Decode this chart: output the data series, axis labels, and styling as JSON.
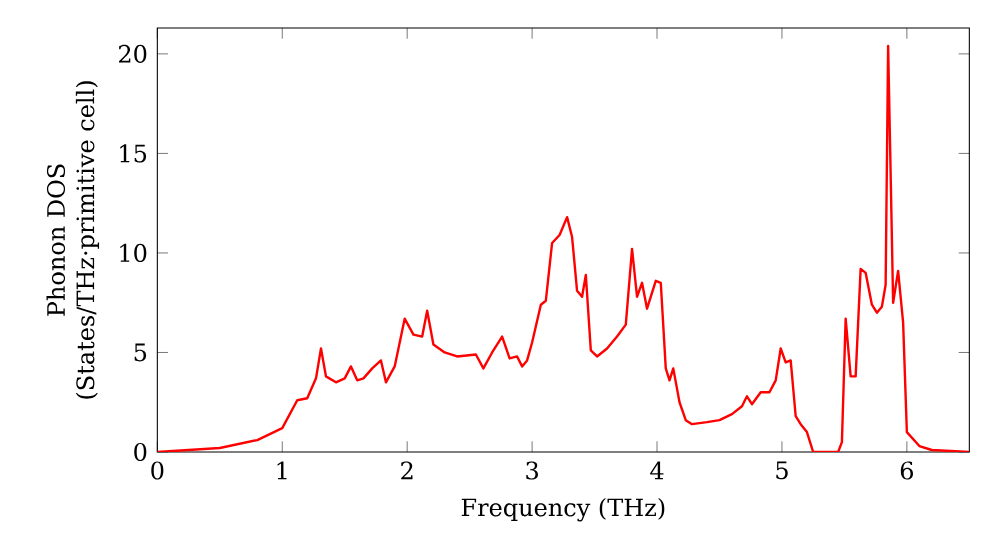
{
  "chart_data": {
    "type": "line",
    "xlabel": "Frequency (THz)",
    "ylabel": "Phonon DOS\n(States/THz·primitive cell)",
    "x": [
      0,
      0.5,
      0.8,
      1.0,
      1.12,
      1.2,
      1.27,
      1.31,
      1.35,
      1.43,
      1.5,
      1.55,
      1.6,
      1.65,
      1.72,
      1.79,
      1.83,
      1.9,
      1.98,
      2.05,
      2.12,
      2.16,
      2.21,
      2.3,
      2.4,
      2.55,
      2.61,
      2.68,
      2.76,
      2.82,
      2.88,
      2.92,
      2.96,
      3.0,
      3.07,
      3.11,
      3.16,
      3.22,
      3.28,
      3.32,
      3.36,
      3.4,
      3.43,
      3.47,
      3.52,
      3.6,
      3.68,
      3.75,
      3.8,
      3.84,
      3.88,
      3.92,
      3.99,
      4.03,
      4.07,
      4.1,
      4.13,
      4.18,
      4.23,
      4.28,
      4.4,
      4.5,
      4.6,
      4.68,
      4.72,
      4.76,
      4.83,
      4.9,
      4.95,
      4.99,
      5.03,
      5.07,
      5.11,
      5.15,
      5.2,
      5.25,
      5.45,
      5.48,
      5.51,
      5.55,
      5.59,
      5.63,
      5.67,
      5.72,
      5.76,
      5.8,
      5.83,
      5.85,
      5.87,
      5.89,
      5.93,
      5.97,
      6.0,
      6.1,
      6.2,
      6.5
    ],
    "series": [
      {
        "color": "#ff0000",
        "values": [
          0,
          0.2,
          0.6,
          1.2,
          2.6,
          2.7,
          3.7,
          5.2,
          3.8,
          3.5,
          3.7,
          4.3,
          3.6,
          3.7,
          4.2,
          4.6,
          3.5,
          4.3,
          6.7,
          5.9,
          5.8,
          7.1,
          5.4,
          5.0,
          4.8,
          4.9,
          4.2,
          5.0,
          5.8,
          4.7,
          4.8,
          4.3,
          4.6,
          5.5,
          7.4,
          7.6,
          10.5,
          10.9,
          11.8,
          10.8,
          8.1,
          7.8,
          8.9,
          5.1,
          4.8,
          5.2,
          5.8,
          6.4,
          10.2,
          7.8,
          8.5,
          7.2,
          8.6,
          8.5,
          4.2,
          3.6,
          4.2,
          2.5,
          1.6,
          1.4,
          1.5,
          1.6,
          1.9,
          2.3,
          2.8,
          2.4,
          3.0,
          3.0,
          3.6,
          5.2,
          4.5,
          4.6,
          1.8,
          1.4,
          1.0,
          0,
          0,
          0.5,
          6.7,
          3.8,
          3.8,
          9.2,
          9.0,
          7.4,
          7.0,
          7.3,
          8.4,
          20.4,
          14,
          7.5,
          9.1,
          6.5,
          1.0,
          0.3,
          0.1,
          0
        ]
      }
    ],
    "xlim": [
      0,
      6.5
    ],
    "ylim": [
      0,
      21.3
    ],
    "xticks": [
      0,
      1,
      2,
      3,
      4,
      5,
      6
    ],
    "yticks": [
      0,
      5,
      10,
      15,
      20
    ],
    "grid": false,
    "marker": "none",
    "line_style": "solid"
  }
}
